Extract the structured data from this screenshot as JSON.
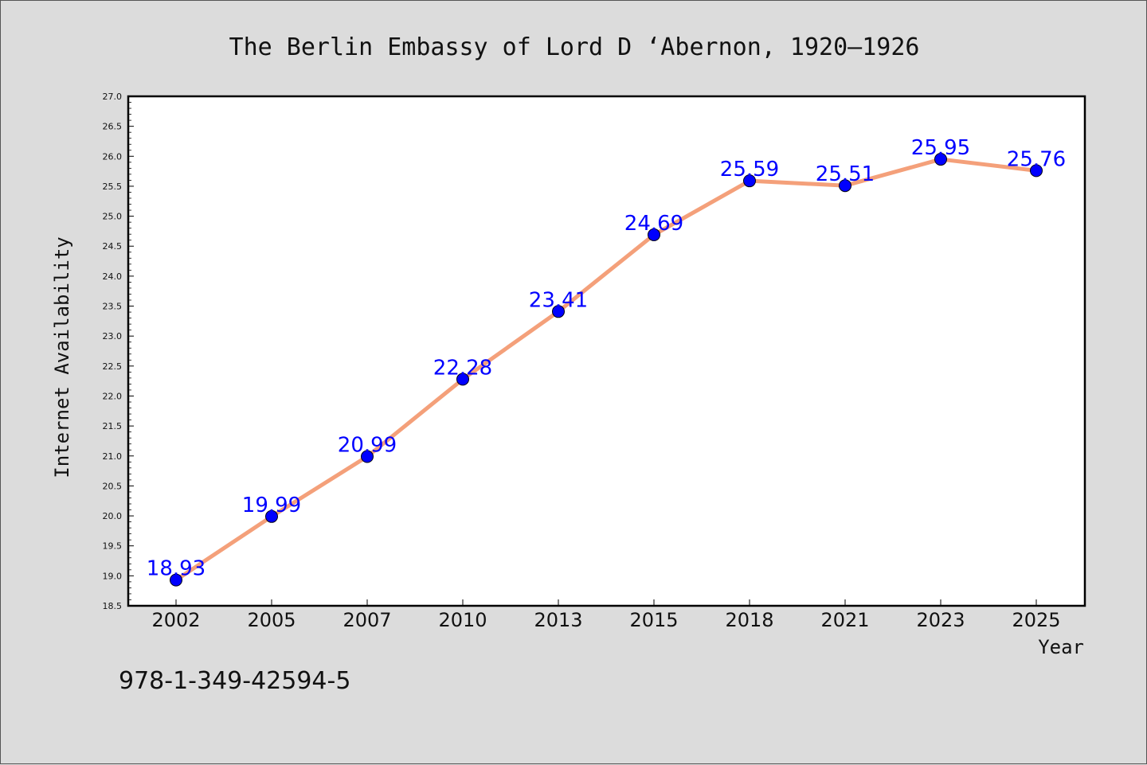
{
  "chart_data": {
    "type": "line",
    "title": "The Berlin Embassy of Lord D ‘Abernon, 1920–1926",
    "xlabel": "Year",
    "ylabel": "Internet Availability",
    "categories": [
      "2002",
      "2005",
      "2007",
      "2010",
      "2013",
      "2015",
      "2018",
      "2021",
      "2023",
      "2025"
    ],
    "values": [
      18.93,
      19.99,
      20.99,
      22.28,
      23.41,
      24.69,
      25.59,
      25.51,
      25.95,
      25.76
    ],
    "data_labels": [
      "18.93",
      "19.99",
      "20.99",
      "22.28",
      "23.41",
      "24.69",
      "25.59",
      "25.51",
      "25.95",
      "25.76"
    ],
    "ylim": [
      18.5,
      27.0
    ],
    "yticks": [
      "18.5",
      "19.0",
      "19.5",
      "20.0",
      "20.5",
      "21.0",
      "21.5",
      "22.0",
      "22.5",
      "23.0",
      "23.5",
      "24.0",
      "24.5",
      "25.0",
      "25.5",
      "26.0",
      "26.5",
      "27.0"
    ],
    "grid": false,
    "legend": "none",
    "line_color": "#f4a07a",
    "marker_color": "#0000ff",
    "label_color": "#0000ff"
  },
  "footer": {
    "isbn": "978-1-349-42594-5"
  }
}
